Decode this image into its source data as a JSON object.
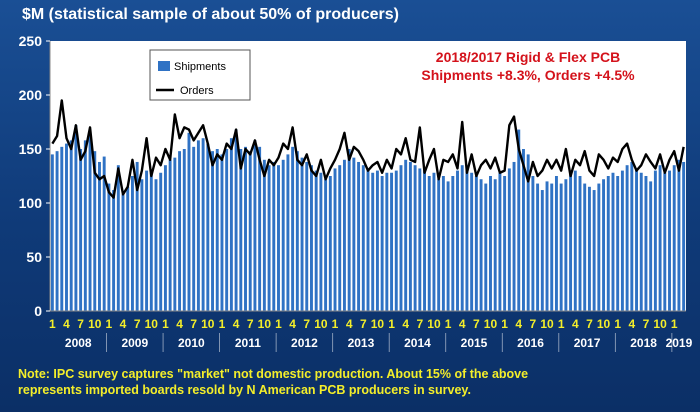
{
  "title": "$M (statistical sample of about 50% of producers)",
  "annotation": {
    "line1": "2018/2017  Rigid & Flex PCB",
    "line2": "Shipments +8.3%,  Orders +4.5%"
  },
  "note": {
    "line1": "Note:  IPC survey captures \"market\" not domestic production.  About 15% of the above",
    "line2": "represents imported boards resold by N American PCB producers in survey."
  },
  "colors": {
    "background": "#134380",
    "plot_area": "#ffffff",
    "bars": "#2f72c4",
    "line": "#000000",
    "annotation": "#d4121b",
    "note": "#f4ee2a",
    "axis_text": "#ffffff",
    "month_text": "#f4ee2a"
  },
  "chart_data": {
    "type": "bar",
    "title": "$M (statistical sample of about 50% of producers)",
    "ylim": [
      0,
      250
    ],
    "yticks": [
      0,
      50,
      100,
      150,
      200,
      250
    ],
    "grid": false,
    "legend_position": "top-left",
    "month_labels": [
      "1",
      "4",
      "7",
      "10"
    ],
    "years": [
      "2008",
      "2009",
      "2010",
      "2011",
      "2012",
      "2013",
      "2014",
      "2015",
      "2016",
      "2017",
      "2018",
      "2019"
    ],
    "start": "2008-01",
    "series": [
      {
        "name": "Shipments",
        "type": "bar",
        "values": [
          145,
          148,
          152,
          155,
          158,
          172,
          150,
          158,
          165,
          148,
          138,
          143,
          118,
          112,
          135,
          108,
          115,
          125,
          138,
          122,
          130,
          128,
          122,
          128,
          135,
          140,
          142,
          148,
          150,
          165,
          152,
          158,
          160,
          155,
          148,
          150,
          145,
          150,
          160,
          168,
          150,
          152,
          148,
          158,
          152,
          140,
          135,
          138,
          135,
          140,
          145,
          152,
          148,
          142,
          138,
          135,
          130,
          128,
          122,
          125,
          132,
          135,
          140,
          150,
          142,
          138,
          135,
          132,
          128,
          130,
          125,
          128,
          128,
          130,
          135,
          140,
          138,
          135,
          132,
          130,
          125,
          128,
          122,
          125,
          120,
          125,
          130,
          135,
          130,
          128,
          125,
          122,
          118,
          125,
          122,
          128,
          125,
          132,
          138,
          168,
          150,
          145,
          125,
          118,
          112,
          120,
          118,
          125,
          118,
          122,
          128,
          130,
          125,
          118,
          115,
          112,
          118,
          122,
          125,
          128,
          125,
          130,
          135,
          138,
          132,
          128,
          125,
          120,
          130,
          135,
          128,
          130,
          135,
          140,
          138
        ]
      },
      {
        "name": "Orders",
        "type": "line",
        "values": [
          155,
          162,
          195,
          160,
          150,
          172,
          140,
          148,
          170,
          128,
          122,
          125,
          110,
          105,
          132,
          108,
          115,
          140,
          112,
          130,
          160,
          125,
          142,
          135,
          150,
          140,
          182,
          160,
          170,
          168,
          158,
          165,
          172,
          155,
          135,
          145,
          140,
          155,
          150,
          168,
          132,
          150,
          145,
          158,
          140,
          125,
          140,
          135,
          142,
          155,
          150,
          170,
          140,
          135,
          145,
          130,
          125,
          140,
          122,
          132,
          140,
          150,
          165,
          140,
          152,
          148,
          140,
          130,
          135,
          138,
          128,
          140,
          132,
          150,
          145,
          160,
          140,
          138,
          170,
          128,
          140,
          150,
          122,
          140,
          138,
          145,
          132,
          175,
          128,
          145,
          125,
          135,
          140,
          132,
          142,
          128,
          130,
          172,
          180,
          150,
          135,
          120,
          138,
          125,
          130,
          140,
          132,
          140,
          130,
          150,
          125,
          140,
          135,
          148,
          130,
          125,
          145,
          140,
          132,
          142,
          138,
          150,
          155,
          140,
          130,
          135,
          145,
          138,
          132,
          145,
          128,
          140,
          148,
          130,
          152
        ]
      }
    ]
  }
}
